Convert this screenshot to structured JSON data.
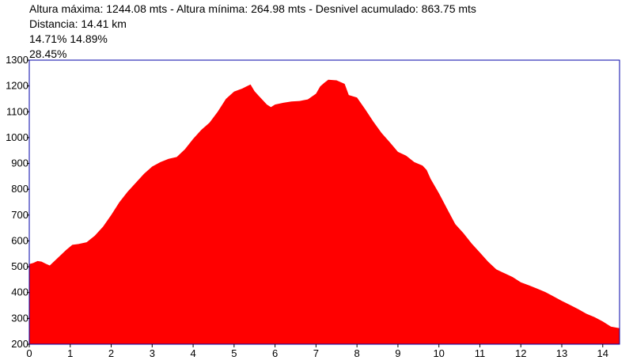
{
  "header": {
    "line1": "Altura máxima: 1244.08 mts - Altura mínima: 264.98 mts - Desnivel acumulado: 863.75 mts",
    "line2": "Distancia: 14.41 km",
    "line3": "14.71% 14.89%",
    "line4": "28.45%"
  },
  "colors": {
    "fill": "#ff0000",
    "frame": "#0000aa",
    "background": "#ffffff"
  },
  "chart_data": {
    "type": "area",
    "title": "",
    "xlabel": "",
    "ylabel": "",
    "xlim": [
      0,
      14.41
    ],
    "ylim": [
      200,
      1300
    ],
    "x_ticks": [
      0,
      1,
      2,
      3,
      4,
      5,
      6,
      7,
      8,
      9,
      10,
      11,
      12,
      13,
      14
    ],
    "y_ticks": [
      200,
      300,
      400,
      500,
      600,
      700,
      800,
      900,
      1000,
      1100,
      1200,
      1300
    ],
    "series": [
      {
        "points": [
          [
            0.0,
            510
          ],
          [
            0.1,
            515
          ],
          [
            0.2,
            522
          ],
          [
            0.3,
            520
          ],
          [
            0.4,
            512
          ],
          [
            0.5,
            505
          ],
          [
            0.7,
            535
          ],
          [
            0.9,
            565
          ],
          [
            1.05,
            585
          ],
          [
            1.2,
            588
          ],
          [
            1.4,
            595
          ],
          [
            1.6,
            620
          ],
          [
            1.8,
            655
          ],
          [
            2.0,
            700
          ],
          [
            2.2,
            750
          ],
          [
            2.4,
            790
          ],
          [
            2.6,
            825
          ],
          [
            2.8,
            860
          ],
          [
            3.0,
            888
          ],
          [
            3.2,
            905
          ],
          [
            3.4,
            918
          ],
          [
            3.6,
            925
          ],
          [
            3.8,
            955
          ],
          [
            4.0,
            995
          ],
          [
            4.2,
            1030
          ],
          [
            4.4,
            1058
          ],
          [
            4.6,
            1100
          ],
          [
            4.8,
            1150
          ],
          [
            5.0,
            1178
          ],
          [
            5.2,
            1190
          ],
          [
            5.3,
            1198
          ],
          [
            5.4,
            1206
          ],
          [
            5.5,
            1180
          ],
          [
            5.6,
            1162
          ],
          [
            5.8,
            1128
          ],
          [
            5.9,
            1118
          ],
          [
            6.0,
            1128
          ],
          [
            6.2,
            1135
          ],
          [
            6.4,
            1140
          ],
          [
            6.6,
            1142
          ],
          [
            6.8,
            1148
          ],
          [
            7.0,
            1170
          ],
          [
            7.1,
            1198
          ],
          [
            7.2,
            1212
          ],
          [
            7.3,
            1224
          ],
          [
            7.5,
            1222
          ],
          [
            7.7,
            1208
          ],
          [
            7.8,
            1165
          ],
          [
            8.0,
            1155
          ],
          [
            8.2,
            1110
          ],
          [
            8.4,
            1062
          ],
          [
            8.6,
            1018
          ],
          [
            8.8,
            982
          ],
          [
            9.0,
            945
          ],
          [
            9.2,
            930
          ],
          [
            9.4,
            905
          ],
          [
            9.6,
            892
          ],
          [
            9.7,
            875
          ],
          [
            9.8,
            840
          ],
          [
            10.0,
            785
          ],
          [
            10.2,
            725
          ],
          [
            10.4,
            665
          ],
          [
            10.6,
            630
          ],
          [
            10.8,
            590
          ],
          [
            11.0,
            555
          ],
          [
            11.2,
            520
          ],
          [
            11.4,
            490
          ],
          [
            11.6,
            475
          ],
          [
            11.8,
            460
          ],
          [
            12.0,
            440
          ],
          [
            12.2,
            428
          ],
          [
            12.4,
            415
          ],
          [
            12.6,
            402
          ],
          [
            12.8,
            385
          ],
          [
            13.0,
            368
          ],
          [
            13.2,
            352
          ],
          [
            13.4,
            336
          ],
          [
            13.6,
            318
          ],
          [
            13.8,
            305
          ],
          [
            14.0,
            288
          ],
          [
            14.2,
            268
          ],
          [
            14.41,
            262
          ]
        ]
      }
    ]
  }
}
